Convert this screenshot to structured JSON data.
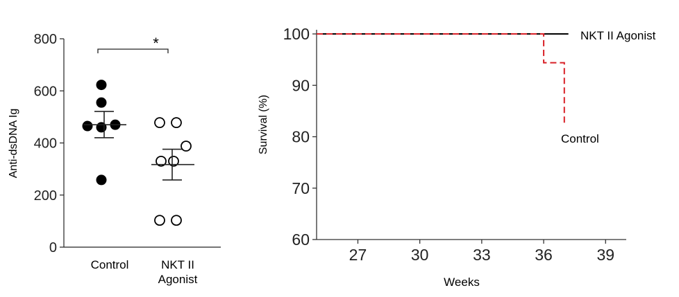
{
  "chart_data": [
    {
      "type": "scatter",
      "ylabel": "Anti-dsDNA Ig",
      "ylim": [
        0,
        800
      ],
      "yticks": [
        "0",
        "200",
        "400",
        "600",
        "800"
      ],
      "categories": [
        {
          "label_lines": [
            "Control"
          ]
        },
        {
          "label_lines": [
            "NKT II",
            "Agonist"
          ]
        }
      ],
      "series": [
        {
          "group": 0,
          "marker": "filled-circle",
          "values": [
            623,
            555,
            465,
            460,
            470,
            258
          ],
          "mean": 470,
          "sem": [
            420,
            521
          ]
        },
        {
          "group": 1,
          "marker": "open-circle",
          "values": [
            478,
            478,
            388,
            330,
            330,
            103,
            103
          ],
          "mean": 317,
          "sem": [
            258,
            376
          ]
        }
      ],
      "annotation": {
        "text": "*",
        "between": [
          0,
          1
        ]
      }
    },
    {
      "type": "line",
      "xlabel": "Weeks",
      "ylabel": "Survival (%)",
      "xlim": [
        25,
        40
      ],
      "ylim": [
        60,
        100
      ],
      "xticks": [
        "27",
        "30",
        "33",
        "36",
        "39"
      ],
      "yticks": [
        "60",
        "70",
        "80",
        "90",
        "100"
      ],
      "series": [
        {
          "name": "NKT II Agonist",
          "color": "#000000",
          "style": "solid",
          "points": [
            [
              25,
              100
            ],
            [
              37.2,
              100
            ]
          ]
        },
        {
          "name": "Control",
          "color": "#d81f26",
          "style": "dashed",
          "points": [
            [
              25,
              100
            ],
            [
              36,
              100
            ],
            [
              36,
              94.4
            ],
            [
              37,
              94.4
            ],
            [
              37,
              82.5
            ]
          ]
        }
      ]
    }
  ]
}
